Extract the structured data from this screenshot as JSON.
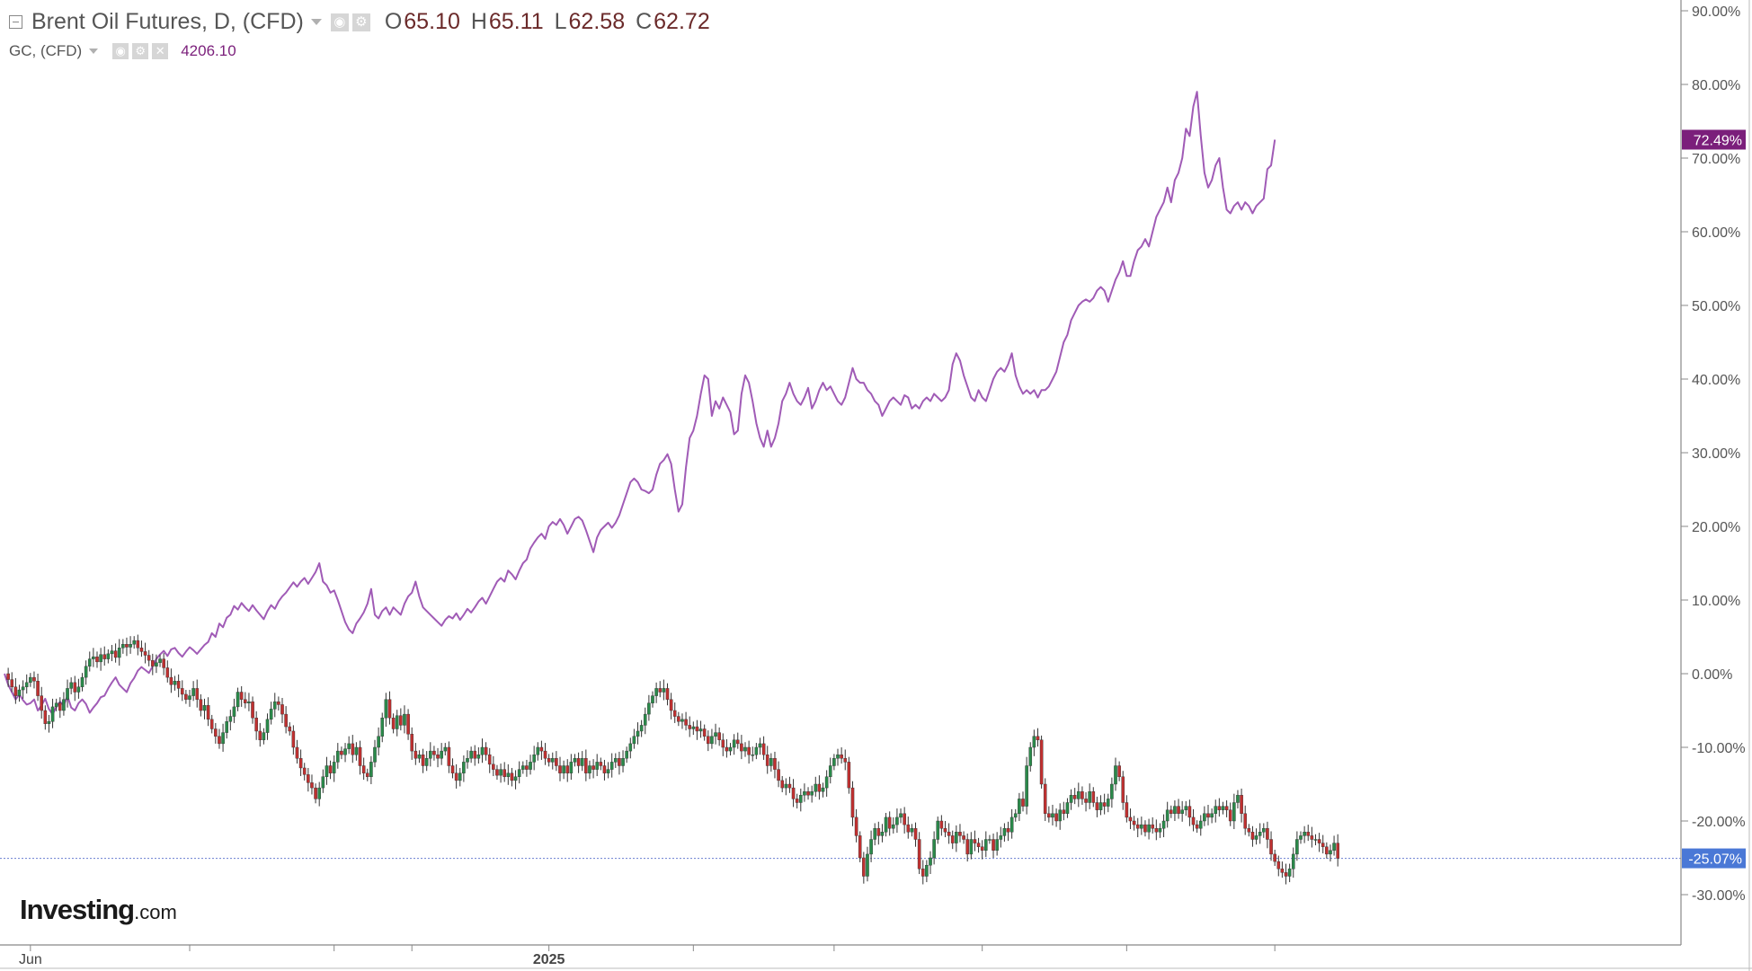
{
  "legend": {
    "main_title": "Brent Oil Futures, D, (CFD)",
    "ohlc": [
      {
        "key": "O",
        "value": "65.10"
      },
      {
        "key": "H",
        "value": "65.11"
      },
      {
        "key": "L",
        "value": "62.58"
      },
      {
        "key": "C",
        "value": "62.72"
      }
    ],
    "compare_title": "GC, (CFD)",
    "compare_value": "4206.10"
  },
  "logo": {
    "main": "Investing",
    "suffix": ".com"
  },
  "colors": {
    "up": "#2a8a4a",
    "down": "#c03030",
    "gc_line": "#a05bb6",
    "gc_badge": "#7b1f7b",
    "brent_badge": "#4a78d6",
    "axis": "#888888",
    "grid": "#dddddd",
    "baseline": "#6a7fd0"
  },
  "icons": {
    "collapse": "collapse-icon",
    "dropdown": "chevron-down-icon",
    "visibility": "eye-icon",
    "settings": "gear-icon",
    "close": "close-icon"
  },
  "chart_data": {
    "type": "line",
    "y_axis": {
      "scale": "percent",
      "ylim": [
        -34,
        92
      ],
      "ticks": [
        "90.00%",
        "80.00%",
        "70.00%",
        "60.00%",
        "50.00%",
        "40.00%",
        "30.00%",
        "20.00%",
        "10.00%",
        "0.00%",
        "-10.00%",
        "-20.00%",
        "-30.00%"
      ]
    },
    "x_axis": {
      "ticks": [
        {
          "label": "Jun",
          "index": 7,
          "bold": false
        },
        {
          "label": "2025",
          "index": 147,
          "bold": true
        }
      ],
      "unlabeled_ticks": [
        50,
        89,
        110,
        186,
        224,
        264,
        303,
        343
      ]
    },
    "series": [
      {
        "name": "GC, (CFD)",
        "kind": "line",
        "last_label": "72.49%",
        "values": [
          0.0,
          -1.5,
          -2.5,
          -3.5,
          -2.8,
          -3.6,
          -4.2,
          -4.0,
          -3.5,
          -5.0,
          -4.3,
          -3.4,
          -4.8,
          -5.5,
          -4.5,
          -3.8,
          -4.3,
          -3.0,
          -4.6,
          -5.0,
          -4.0,
          -3.5,
          -4.1,
          -5.3,
          -4.6,
          -4.0,
          -3.2,
          -3.0,
          -2.0,
          -1.2,
          -0.5,
          -1.5,
          -2.0,
          -2.5,
          -1.3,
          -0.6,
          0.4,
          0.9,
          0.5,
          0.1,
          1.0,
          2.0,
          2.6,
          3.1,
          2.4,
          3.3,
          3.5,
          2.8,
          2.3,
          3.0,
          3.6,
          3.2,
          2.7,
          3.3,
          3.9,
          4.3,
          5.5,
          5.0,
          6.8,
          6.3,
          7.6,
          8.0,
          9.2,
          8.7,
          9.6,
          9.0,
          8.5,
          9.3,
          8.6,
          8.0,
          7.4,
          8.5,
          9.3,
          8.8,
          9.8,
          10.5,
          11.0,
          11.7,
          12.4,
          11.8,
          12.5,
          13.0,
          12.2,
          13.0,
          13.8,
          15.0,
          12.5,
          12.0,
          11.0,
          11.3,
          10.0,
          8.5,
          7.0,
          6.0,
          5.5,
          6.8,
          7.5,
          8.3,
          9.5,
          11.5,
          8.0,
          7.5,
          8.5,
          9.0,
          8.0,
          9.0,
          8.5,
          8.0,
          9.5,
          10.5,
          11.0,
          12.5,
          10.5,
          9.0,
          8.5,
          8.0,
          7.5,
          7.0,
          6.5,
          7.3,
          7.8,
          7.5,
          8.2,
          7.3,
          8.0,
          8.8,
          8.3,
          9.0,
          9.8,
          10.3,
          9.5,
          10.5,
          11.5,
          12.5,
          13.0,
          12.5,
          14.0,
          13.5,
          12.8,
          14.0,
          15.0,
          15.5,
          17.0,
          17.8,
          18.5,
          19.0,
          18.3,
          20.0,
          20.6,
          20.2,
          21.0,
          20.2,
          19.0,
          20.0,
          21.0,
          21.3,
          20.8,
          19.5,
          18.0,
          16.5,
          18.5,
          19.5,
          20.0,
          20.5,
          19.8,
          20.5,
          21.5,
          23.0,
          24.5,
          26.0,
          26.5,
          26.0,
          25.0,
          24.8,
          24.5,
          25.0,
          27.0,
          28.5,
          29.0,
          29.8,
          28.5,
          25.0,
          22.0,
          23.0,
          28.0,
          32.0,
          33.0,
          35.0,
          38.0,
          40.5,
          40.0,
          35.0,
          37.0,
          36.0,
          37.5,
          36.5,
          35.5,
          32.5,
          33.0,
          38.0,
          40.5,
          39.5,
          37.0,
          34.0,
          32.0,
          30.8,
          33.0,
          30.8,
          32.0,
          34.0,
          37.0,
          38.0,
          39.5,
          38.0,
          37.0,
          36.5,
          37.5,
          38.8,
          36.0,
          37.0,
          38.5,
          39.5,
          38.5,
          39.0,
          38.0,
          37.0,
          36.5,
          37.5,
          39.5,
          41.5,
          40.0,
          39.5,
          39.5,
          38.5,
          38.0,
          37.0,
          36.5,
          35.0,
          36.0,
          37.0,
          37.5,
          37.0,
          36.5,
          37.8,
          37.5,
          36.0,
          36.5,
          36.0,
          37.0,
          37.5,
          37.0,
          38.0,
          37.5,
          37.0,
          37.5,
          38.5,
          42.0,
          43.5,
          42.5,
          40.5,
          39.0,
          37.5,
          37.0,
          38.5,
          37.5,
          37.0,
          38.5,
          40.0,
          41.0,
          41.5,
          41.0,
          42.0,
          43.5,
          40.5,
          39.0,
          38.0,
          38.5,
          38.0,
          38.5,
          37.5,
          38.5,
          38.5,
          39.0,
          40.0,
          41.0,
          43.0,
          45.0,
          46.0,
          48.0,
          49.0,
          50.0,
          50.5,
          50.8,
          50.5,
          51.0,
          52.0,
          52.5,
          52.0,
          50.5,
          52.0,
          53.5,
          54.5,
          56.0,
          54.0,
          54.0,
          56.0,
          57.5,
          58.0,
          59.0,
          58.0,
          60.0,
          62.0,
          63.0,
          64.0,
          66.0,
          64.0,
          67.0,
          68.0,
          70.0,
          74.0,
          73.0,
          77.0,
          79.0,
          73.0,
          68.0,
          66.0,
          67.0,
          69.0,
          70.0,
          66.0,
          63.0,
          62.5,
          63.5,
          64.0,
          63.0,
          64.0,
          63.5,
          62.5,
          63.5,
          64.0,
          64.5,
          68.5,
          69.0,
          72.5
        ]
      },
      {
        "name": "Brent Oil Futures, D, (CFD)",
        "kind": "candlestick",
        "last_label": "-25.07%",
        "values": [
          0.0,
          -0.8,
          -1.8,
          -3.0,
          -2.2,
          -1.8,
          -1.2,
          -0.5,
          -1.0,
          -3.0,
          -5.0,
          -6.8,
          -6.5,
          -4.5,
          -4.0,
          -5.0,
          -3.5,
          -2.0,
          -1.2,
          -2.5,
          -1.8,
          -0.5,
          1.0,
          2.0,
          2.3,
          1.6,
          2.6,
          2.0,
          2.7,
          3.1,
          2.2,
          3.5,
          4.0,
          3.6,
          4.0,
          4.5,
          3.5,
          3.0,
          2.5,
          1.8,
          1.0,
          1.5,
          2.0,
          0.8,
          -0.5,
          -1.5,
          -1.0,
          -2.0,
          -2.8,
          -3.5,
          -3.0,
          -2.0,
          -3.5,
          -5.0,
          -4.3,
          -6.2,
          -7.5,
          -8.5,
          -9.5,
          -8.0,
          -6.5,
          -5.8,
          -4.5,
          -2.5,
          -3.5,
          -4.0,
          -3.8,
          -6.0,
          -7.8,
          -9.0,
          -8.0,
          -6.2,
          -4.8,
          -3.8,
          -4.2,
          -5.5,
          -7.2,
          -7.8,
          -10.0,
          -11.5,
          -12.8,
          -13.7,
          -14.8,
          -15.5,
          -17.0,
          -15.5,
          -14.0,
          -12.5,
          -13.5,
          -12.0,
          -10.5,
          -11.0,
          -10.2,
          -9.5,
          -11.0,
          -10.0,
          -12.5,
          -13.5,
          -14.0,
          -12.0,
          -10.0,
          -8.5,
          -6.0,
          -3.5,
          -6.0,
          -7.5,
          -5.7,
          -7.0,
          -5.5,
          -8.2,
          -10.5,
          -11.5,
          -11.0,
          -12.5,
          -11.5,
          -10.5,
          -11.0,
          -11.5,
          -10.5,
          -10.0,
          -12.5,
          -13.5,
          -14.5,
          -13.5,
          -12.0,
          -11.5,
          -10.5,
          -11.5,
          -11.0,
          -10.0,
          -11.0,
          -12.3,
          -13.0,
          -13.8,
          -13.0,
          -14.0,
          -13.5,
          -14.5,
          -14.0,
          -13.0,
          -12.5,
          -13.0,
          -12.0,
          -11.0,
          -10.0,
          -10.5,
          -11.5,
          -12.0,
          -11.5,
          -12.5,
          -13.5,
          -12.5,
          -13.5,
          -12.0,
          -11.5,
          -12.5,
          -11.5,
          -13.5,
          -12.5,
          -13.0,
          -12.0,
          -12.5,
          -13.5,
          -13.0,
          -12.0,
          -11.5,
          -12.5,
          -11.5,
          -10.5,
          -9.5,
          -8.5,
          -7.8,
          -7.0,
          -5.5,
          -4.0,
          -3.0,
          -2.0,
          -2.5,
          -2.0,
          -3.5,
          -5.0,
          -5.8,
          -6.5,
          -6.2,
          -7.0,
          -7.5,
          -7.2,
          -7.8,
          -7.5,
          -8.5,
          -9.5,
          -8.5,
          -8.0,
          -9.0,
          -10.0,
          -10.5,
          -10.0,
          -9.0,
          -9.5,
          -10.5,
          -10.0,
          -11.0,
          -11.0,
          -10.0,
          -9.5,
          -11.0,
          -12.5,
          -11.5,
          -13.0,
          -14.5,
          -15.5,
          -15.0,
          -15.5,
          -17.0,
          -17.5,
          -16.5,
          -16.0,
          -16.5,
          -16.0,
          -15.0,
          -16.0,
          -15.5,
          -14.0,
          -12.5,
          -11.5,
          -11.0,
          -11.5,
          -12.0,
          -15.5,
          -19.5,
          -22.0,
          -25.0,
          -27.5,
          -24.5,
          -22.5,
          -21.0,
          -22.0,
          -21.5,
          -19.5,
          -21.0,
          -20.5,
          -19.5,
          -19.0,
          -20.5,
          -21.5,
          -21.0,
          -22.5,
          -26.5,
          -27.5,
          -26.0,
          -25.0,
          -22.5,
          -20.0,
          -21.0,
          -21.5,
          -22.0,
          -23.0,
          -21.5,
          -22.0,
          -22.5,
          -24.5,
          -22.5,
          -23.0,
          -23.5,
          -24.0,
          -22.5,
          -22.5,
          -24.0,
          -22.5,
          -22.0,
          -21.0,
          -21.5,
          -19.5,
          -19.0,
          -17.0,
          -18.0,
          -12.5,
          -10.0,
          -8.5,
          -9.0,
          -15.0,
          -19.0,
          -19.5,
          -19.0,
          -20.0,
          -18.5,
          -19.0,
          -17.5,
          -16.5,
          -17.0,
          -16.0,
          -17.0,
          -17.5,
          -16.0,
          -17.5,
          -18.5,
          -17.5,
          -18.0,
          -17.0,
          -15.0,
          -12.5,
          -14.0,
          -17.5,
          -19.5,
          -20.0,
          -20.5,
          -21.0,
          -20.5,
          -21.5,
          -20.5,
          -21.0,
          -21.5,
          -21.0,
          -20.0,
          -18.5,
          -19.0,
          -18.0,
          -19.0,
          -18.5,
          -18.0,
          -19.5,
          -20.5,
          -21.0,
          -20.0,
          -19.0,
          -19.5,
          -19.0,
          -18.0,
          -18.5,
          -18.0,
          -18.5,
          -20.0,
          -17.5,
          -16.5,
          -19.0,
          -21.0,
          -21.5,
          -22.5,
          -22.0,
          -21.5,
          -21.0,
          -22.5,
          -24.5,
          -25.5,
          -26.5,
          -27.0,
          -27.5,
          -26.5,
          -24.5,
          -22.5,
          -22.0,
          -21.5,
          -22.0,
          -22.5,
          -22.5,
          -23.0,
          -23.5,
          -24.5,
          -24.0,
          -23.0,
          -25.07
        ]
      }
    ]
  }
}
